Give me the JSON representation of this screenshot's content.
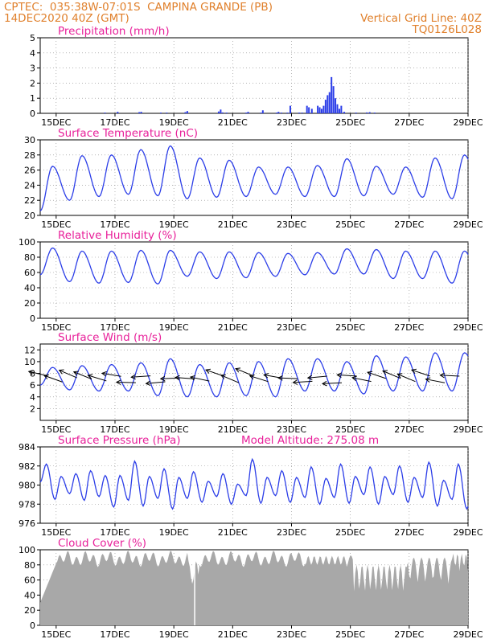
{
  "header": {
    "line1": "CPTEC:  035:38W-07:01S  CAMPINA GRANDE (PB)",
    "line2": "14DEC2020 40Z (GMT)",
    "grid_note": "Vertical Grid Line: 40Z",
    "code": "TQ0126L028"
  },
  "colors": {
    "header": "#e0802c",
    "title": "#e8209a",
    "series": "#2c3ee8",
    "bars": "#2c3ee8",
    "cloud": "#a8a8a8",
    "arrows": "#000000"
  },
  "x_labels": [
    "15DEC",
    "17DEC",
    "19DEC",
    "21DEC",
    "23DEC",
    "25DEC",
    "27DEC",
    "29DEC"
  ],
  "chart_data": [
    {
      "id": "precip",
      "type": "bar",
      "title": "Precipitation (mm/h)",
      "ylim": [
        0,
        5
      ],
      "yticks": [
        0,
        1,
        2,
        3,
        4,
        5
      ],
      "bars": [
        [
          6.6,
          0.05
        ],
        [
          7.9,
          0.1
        ],
        [
          10.1,
          0.08
        ],
        [
          10.3,
          0.1
        ],
        [
          12.3,
          0.05
        ],
        [
          12.9,
          0.05
        ],
        [
          14.8,
          0.08
        ],
        [
          15.0,
          0.15
        ],
        [
          18.2,
          0.12
        ],
        [
          18.4,
          0.25
        ],
        [
          18.6,
          0.06
        ],
        [
          19.0,
          0.05
        ],
        [
          21.0,
          0.05
        ],
        [
          21.2,
          0.1
        ],
        [
          22.5,
          0.05
        ],
        [
          22.7,
          0.2
        ],
        [
          24.1,
          0.05
        ],
        [
          24.3,
          0.1
        ],
        [
          24.6,
          0.05
        ],
        [
          25.2,
          0.05
        ],
        [
          25.5,
          0.5
        ],
        [
          26.4,
          0.05
        ],
        [
          26.7,
          0.05
        ],
        [
          27.2,
          0.5
        ],
        [
          27.4,
          0.4
        ],
        [
          27.7,
          0.3
        ],
        [
          28.3,
          0.5
        ],
        [
          28.5,
          0.4
        ],
        [
          28.7,
          0.3
        ],
        [
          28.9,
          0.5
        ],
        [
          29.1,
          0.9
        ],
        [
          29.3,
          1.2
        ],
        [
          29.5,
          1.4
        ],
        [
          29.7,
          2.4
        ],
        [
          29.9,
          1.8
        ],
        [
          30.1,
          1.0
        ],
        [
          30.3,
          0.6
        ],
        [
          30.5,
          0.3
        ],
        [
          30.7,
          0.5
        ],
        [
          31.0,
          0.1
        ],
        [
          32.2,
          0.05
        ],
        [
          33.3,
          0.06
        ],
        [
          33.6,
          0.08
        ],
        [
          34.1,
          0.05
        ]
      ]
    },
    {
      "id": "temp",
      "type": "line",
      "title": "Surface Temperature (nC)",
      "ylim": [
        20,
        30
      ],
      "yticks": [
        20,
        22,
        24,
        26,
        28,
        30
      ],
      "period_hours": 24,
      "phase": 0.6,
      "min": [
        20.6,
        22.0,
        22.5,
        22.8,
        22.6,
        22.2,
        22.4,
        22.5,
        22.8,
        22.5,
        22.5,
        22.6,
        22.8,
        22.4,
        22.2,
        22.5
      ],
      "max": [
        26.5,
        27.9,
        28.0,
        28.7,
        29.2,
        27.6,
        27.3,
        26.4,
        26.4,
        26.6,
        27.5,
        26.5,
        26.4,
        27.6,
        28.0,
        28.3
      ]
    },
    {
      "id": "rh",
      "type": "line",
      "title": "Relative Humidity (%)",
      "ylim": [
        0,
        100
      ],
      "yticks": [
        0,
        20,
        40,
        60,
        80,
        100
      ],
      "period_hours": 24,
      "min": [
        57,
        48,
        46,
        47,
        45,
        55,
        52,
        53,
        55,
        57,
        58,
        58,
        52,
        52,
        46,
        45
      ],
      "max": [
        92,
        88,
        88,
        89,
        89,
        87,
        87,
        86,
        85,
        86,
        91,
        90,
        88,
        88,
        88,
        75
      ]
    },
    {
      "id": "wind",
      "type": "line",
      "title": "Surface Wind (m/s)",
      "ylim": [
        0,
        13
      ],
      "yticks": [
        2,
        4,
        6,
        8,
        10,
        12
      ],
      "period_hours": 24,
      "min": [
        6.0,
        5.2,
        5.0,
        5.0,
        4.2,
        4.0,
        4.0,
        4.2,
        4.0,
        5.0,
        5.0,
        4.5,
        5.0,
        5.0,
        5.0,
        6.0
      ],
      "max": [
        9.0,
        9.3,
        9.5,
        9.8,
        10.5,
        9.5,
        9.8,
        10.0,
        10.5,
        10.5,
        10.0,
        11.0,
        10.8,
        11.5,
        11.5,
        10.0
      ]
    },
    {
      "id": "press",
      "type": "line",
      "title": "Surface Pressure (hPa)",
      "note": "Model Altitude: 275.08 m",
      "ylim": [
        976,
        984
      ],
      "yticks": [
        976,
        978,
        980,
        982,
        984
      ],
      "period_hours": 12,
      "min": [
        980.3,
        978.5,
        979.1,
        978.4,
        978.8,
        977.7,
        978.4,
        977.8,
        978.6,
        977.5,
        978.6,
        978.2,
        978.8,
        978.0,
        978.9,
        978.1,
        978.9,
        978.2,
        978.7,
        978.0,
        978.7,
        978.1,
        979.0,
        978.0,
        979.0,
        978.2,
        978.7,
        977.8,
        978.5,
        977.5,
        978.7,
        977.7
      ],
      "max": [
        982.2,
        980.9,
        981.2,
        981.5,
        981.0,
        981.0,
        982.5,
        980.9,
        981.7,
        980.8,
        981.4,
        980.4,
        981.2,
        980.1,
        982.7,
        980.8,
        981.5,
        980.8,
        981.9,
        980.7,
        982.2,
        980.9,
        981.9,
        980.9,
        982.0,
        980.8,
        982.4,
        980.5,
        982.2,
        980.3,
        982.1,
        980.3
      ]
    },
    {
      "id": "cloud",
      "type": "area",
      "title": "Cloud Cover (%)",
      "ylim": [
        0,
        100
      ],
      "yticks": [
        0,
        20,
        40,
        60,
        80,
        100
      ]
    }
  ]
}
